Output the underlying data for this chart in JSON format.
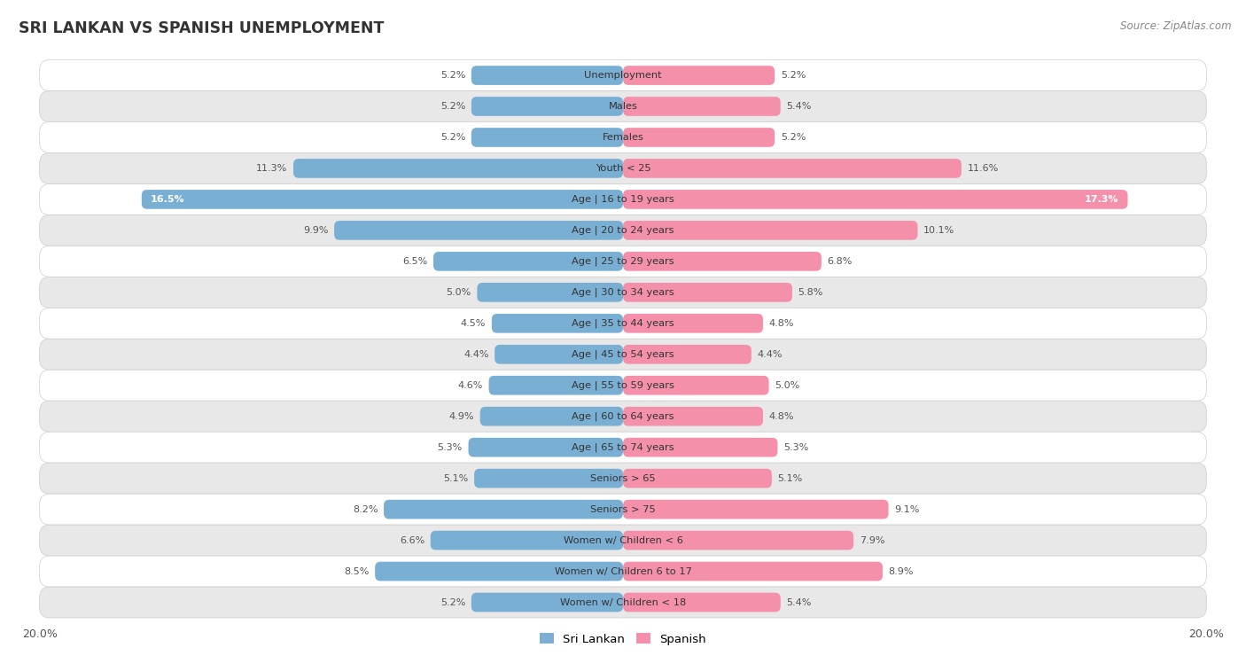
{
  "title": "SRI LANKAN VS SPANISH UNEMPLOYMENT",
  "source": "Source: ZipAtlas.com",
  "categories": [
    "Unemployment",
    "Males",
    "Females",
    "Youth < 25",
    "Age | 16 to 19 years",
    "Age | 20 to 24 years",
    "Age | 25 to 29 years",
    "Age | 30 to 34 years",
    "Age | 35 to 44 years",
    "Age | 45 to 54 years",
    "Age | 55 to 59 years",
    "Age | 60 to 64 years",
    "Age | 65 to 74 years",
    "Seniors > 65",
    "Seniors > 75",
    "Women w/ Children < 6",
    "Women w/ Children 6 to 17",
    "Women w/ Children < 18"
  ],
  "sri_lankan": [
    5.2,
    5.2,
    5.2,
    11.3,
    16.5,
    9.9,
    6.5,
    5.0,
    4.5,
    4.4,
    4.6,
    4.9,
    5.3,
    5.1,
    8.2,
    6.6,
    8.5,
    5.2
  ],
  "spanish": [
    5.2,
    5.4,
    5.2,
    11.6,
    17.3,
    10.1,
    6.8,
    5.8,
    4.8,
    4.4,
    5.0,
    4.8,
    5.3,
    5.1,
    9.1,
    7.9,
    8.9,
    5.4
  ],
  "sri_lankan_color": "#7aafd4",
  "spanish_color": "#f490aa",
  "row_bg_color": "#f0f0f0",
  "row_white_color": "#ffffff",
  "row_gray_color": "#e8e8e8",
  "outer_bg": "#ffffff",
  "max_value": 20.0,
  "legend_sri_lankan": "Sri Lankan",
  "legend_spanish": "Spanish",
  "inside_label_threshold": 12.0
}
